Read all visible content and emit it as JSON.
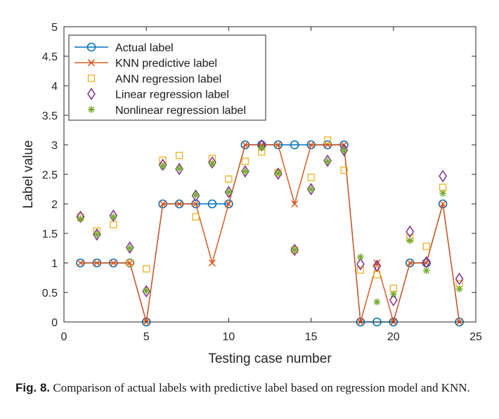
{
  "chart_data": {
    "type": "line",
    "xlabel": "Testing case number",
    "ylabel": "Label value",
    "xlim": [
      0,
      25
    ],
    "ylim": [
      0,
      5
    ],
    "xticks": [
      "0",
      "5",
      "10",
      "15",
      "20",
      "25"
    ],
    "yticks": [
      "0",
      "0.5",
      "1",
      "1.5",
      "2",
      "2.5",
      "3",
      "3.5",
      "4",
      "4.5",
      "5"
    ],
    "grid": false,
    "legend_position": "top-left",
    "x": [
      1,
      2,
      3,
      4,
      5,
      6,
      7,
      8,
      9,
      10,
      11,
      12,
      13,
      14,
      15,
      16,
      17,
      18,
      19,
      20,
      21,
      22,
      23,
      24
    ],
    "series": [
      {
        "name": "Actual label",
        "style": "line-circle",
        "color": "#0072BD",
        "values": [
          1,
          1,
          1,
          1,
          0,
          2,
          2,
          2,
          2,
          2,
          3,
          3,
          3,
          3,
          3,
          3,
          3,
          0,
          0,
          0,
          1,
          1,
          2,
          0
        ]
      },
      {
        "name": "KNN predictive label",
        "style": "line-x",
        "color": "#D95319",
        "values": [
          1,
          1,
          1,
          1,
          0,
          2,
          2,
          2,
          1,
          2,
          3,
          3,
          3,
          2,
          3,
          3,
          3,
          0,
          1,
          0,
          1,
          1,
          2,
          0
        ]
      },
      {
        "name": "ANN regression label",
        "style": "square",
        "color": "#EDB120",
        "values": [
          1.78,
          1.54,
          1.65,
          1.0,
          0.9,
          2.74,
          2.82,
          1.78,
          2.77,
          2.42,
          2.72,
          2.88,
          2.53,
          1.22,
          2.45,
          3.08,
          2.57,
          0.88,
          0.8,
          0.57,
          1.42,
          1.28,
          2.28,
          0.65
        ]
      },
      {
        "name": "Linear regression label",
        "style": "diamond",
        "color": "#7E2F8E",
        "values": [
          1.78,
          1.48,
          1.8,
          1.26,
          0.52,
          2.66,
          2.59,
          2.14,
          2.7,
          2.2,
          2.55,
          2.99,
          2.51,
          1.22,
          2.25,
          2.73,
          2.91,
          0.98,
          0.95,
          0.37,
          1.53,
          1.01,
          2.47,
          0.73
        ]
      },
      {
        "name": "Nonlinear regression label",
        "style": "asterisk",
        "color": "#77AC30",
        "values": [
          1.75,
          1.48,
          1.78,
          1.25,
          0.53,
          2.64,
          2.6,
          2.15,
          2.68,
          2.2,
          2.55,
          2.95,
          2.52,
          1.22,
          2.25,
          2.72,
          2.9,
          1.1,
          0.34,
          0.47,
          1.38,
          0.87,
          2.18,
          0.56
        ]
      }
    ]
  },
  "caption": {
    "label": "Fig. 8.",
    "text": " Comparison of actual labels with predictive label based on regression model and KNN."
  }
}
